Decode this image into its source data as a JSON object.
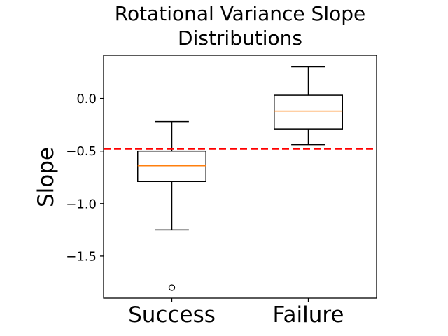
{
  "chart_data": {
    "type": "boxplot",
    "title": "Rotational Variance Slope\nDistributions",
    "ylabel": "Slope",
    "xlabel": "",
    "categories": [
      "Success",
      "Failure"
    ],
    "series": [
      {
        "name": "Success",
        "whisker_low": -1.25,
        "q1": -0.79,
        "median": -0.64,
        "q3": -0.5,
        "whisker_high": -0.22,
        "outliers": [
          -1.8
        ]
      },
      {
        "name": "Failure",
        "whisker_low": -0.44,
        "q1": -0.29,
        "median": -0.12,
        "q3": 0.03,
        "whisker_high": 0.3,
        "outliers": []
      }
    ],
    "reference_line": {
      "value": -0.48,
      "color": "#ff0000",
      "style": "dashed"
    },
    "yticks": [
      {
        "value": 0.0,
        "label": "0.0"
      },
      {
        "value": -0.5,
        "label": "−0.5"
      },
      {
        "value": -1.0,
        "label": "−1.0"
      },
      {
        "value": -1.5,
        "label": "−1.5"
      }
    ],
    "ylim": [
      -1.9,
      0.41
    ],
    "grid": false,
    "legend": null,
    "colors": {
      "box_stroke": "#000000",
      "median": "#ff7f0e",
      "spine": "#000000",
      "outlier_stroke": "#000000"
    }
  }
}
